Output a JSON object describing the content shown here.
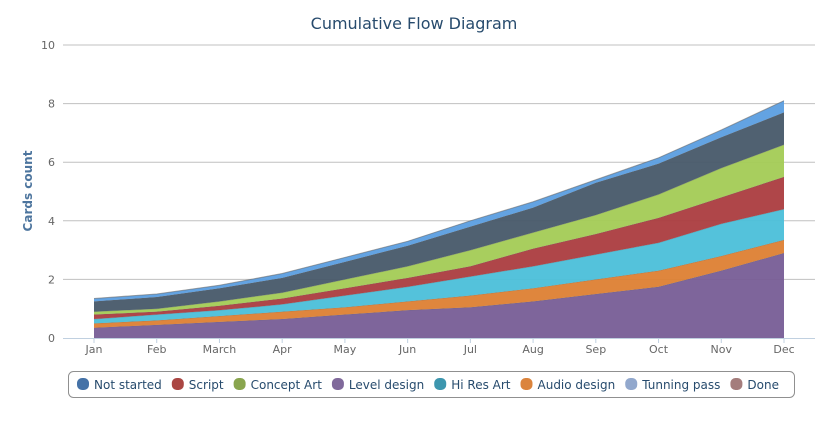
{
  "chart_data": {
    "type": "area",
    "stacked": true,
    "title": "Cumulative Flow Diagram",
    "xlabel": "",
    "ylabel": "Cards count",
    "ylim": [
      0,
      10
    ],
    "yticks": [
      0,
      2,
      4,
      6,
      8,
      10
    ],
    "grid": true,
    "legend_position": "bottom",
    "categories": [
      "Jan",
      "Feb",
      "March",
      "Apr",
      "May",
      "Jun",
      "Jul",
      "Aug",
      "Sep",
      "Oct",
      "Nov",
      "Dec"
    ],
    "series": [
      {
        "name": "Level design",
        "legend_color": "#80699b",
        "fill": "#775d96",
        "values": [
          0.35,
          0.45,
          0.55,
          0.65,
          0.8,
          0.95,
          1.05,
          1.25,
          1.5,
          1.75,
          2.3,
          2.9
        ]
      },
      {
        "name": "Audio design",
        "legend_color": "#db843d",
        "fill": "#dd8033",
        "values": [
          0.15,
          0.15,
          0.2,
          0.25,
          0.25,
          0.3,
          0.4,
          0.45,
          0.5,
          0.55,
          0.5,
          0.45
        ]
      },
      {
        "name": "Hi Res Art",
        "legend_color": "#3d96ae",
        "fill": "#4bbfd9",
        "values": [
          0.15,
          0.2,
          0.2,
          0.25,
          0.4,
          0.5,
          0.65,
          0.75,
          0.85,
          0.95,
          1.1,
          1.05
        ]
      },
      {
        "name": "Script",
        "legend_color": "#aa4643",
        "fill": "#ab3c3f",
        "values": [
          0.15,
          0.1,
          0.15,
          0.2,
          0.25,
          0.3,
          0.35,
          0.6,
          0.7,
          0.85,
          0.9,
          1.1
        ]
      },
      {
        "name": "Concept Art",
        "legend_color": "#89a54e",
        "fill": "#a3cb55",
        "values": [
          0.1,
          0.1,
          0.15,
          0.2,
          0.3,
          0.4,
          0.55,
          0.55,
          0.65,
          0.8,
          1.0,
          1.1
        ]
      },
      {
        "name": "Not started",
        "legend_color": "#4572a7",
        "fill": "#475869",
        "values": [
          0.35,
          0.4,
          0.45,
          0.5,
          0.6,
          0.7,
          0.8,
          0.85,
          1.1,
          1.05,
          1.05,
          1.1
        ]
      },
      {
        "name": "Tunning pass",
        "legend_color": "#92a8cd",
        "fill": "#5b9ee0",
        "values": [
          0.1,
          0.1,
          0.1,
          0.15,
          0.15,
          0.15,
          0.2,
          0.2,
          0.1,
          0.2,
          0.25,
          0.4
        ]
      },
      {
        "name": "Done",
        "legend_color": "#a47d7c",
        "fill": "#a47d7c",
        "values": [
          0,
          0,
          0,
          0,
          0,
          0,
          0,
          0,
          0,
          0,
          0,
          0
        ]
      }
    ],
    "legend_order": [
      "Not started",
      "Script",
      "Concept Art",
      "Level design",
      "Hi Res Art",
      "Audio design",
      "Tunning pass",
      "Done"
    ]
  }
}
